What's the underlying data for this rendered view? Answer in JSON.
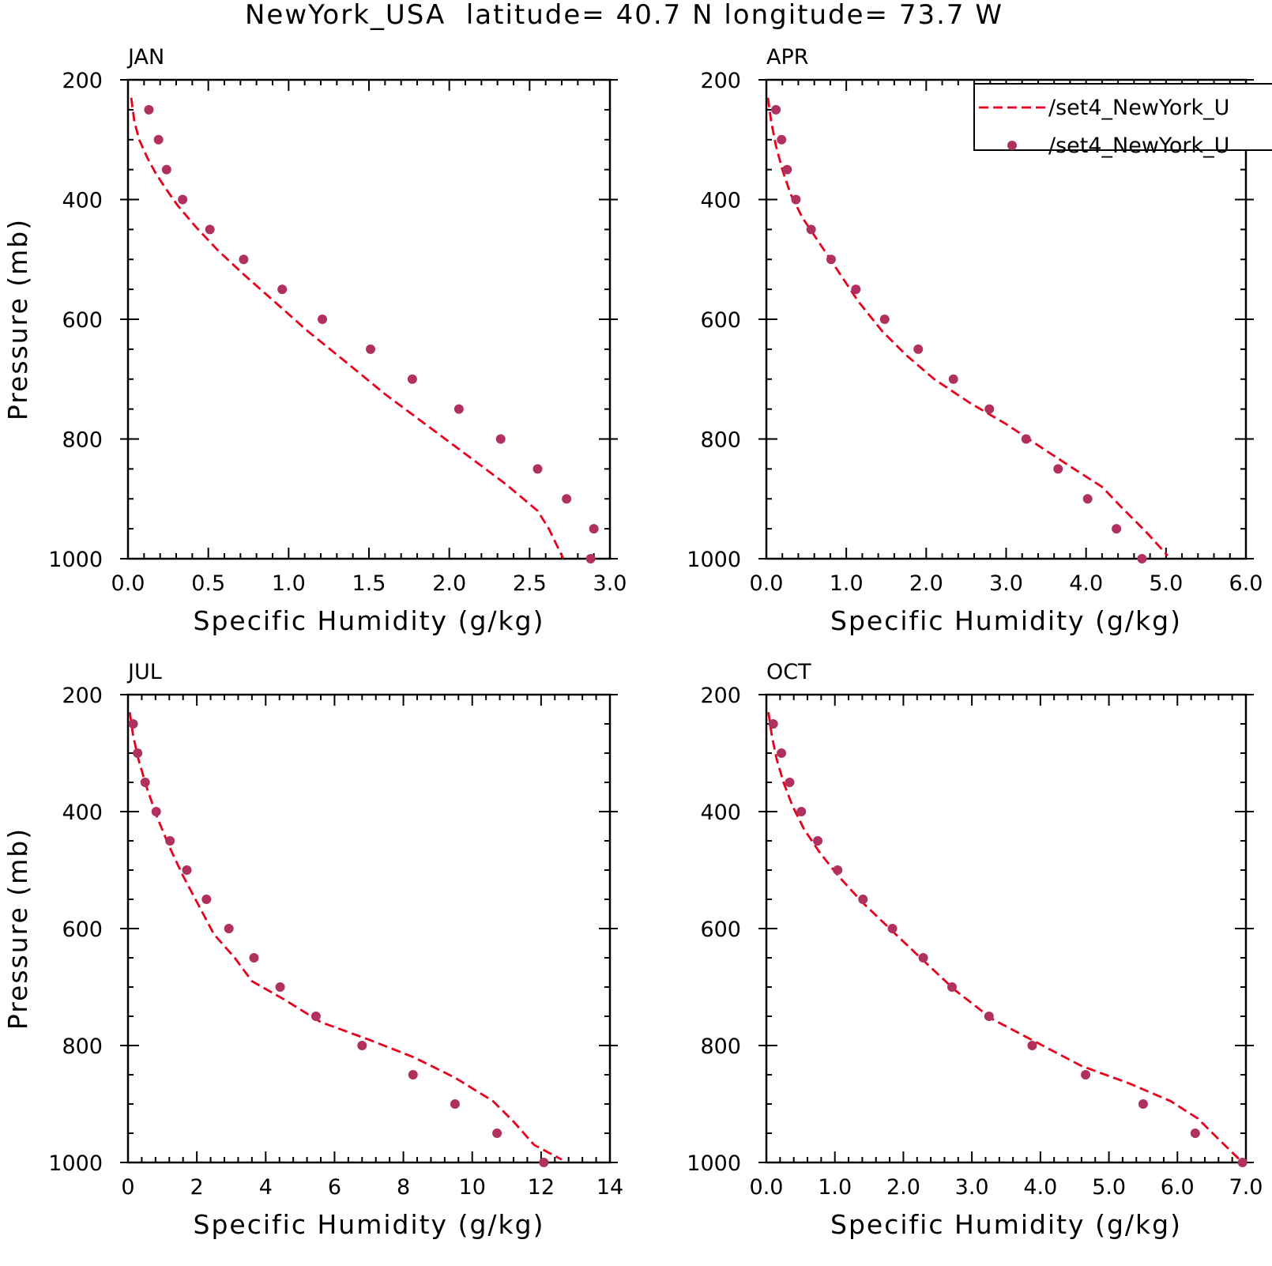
{
  "figure": {
    "title": "NewYork_USA  latitude= 40.7 N longitude= 73.7 W",
    "legend": {
      "placement": "top-right",
      "entries": [
        {
          "label": "/set4_NewYork_U",
          "style": "dashed-line",
          "color": "#e8001c"
        },
        {
          "label": "/set4_NewYork_U",
          "style": "dot",
          "color": "#b03060"
        }
      ]
    }
  },
  "chart_data": [
    {
      "type": "line",
      "panel_label": "JAN",
      "xlabel": "Specific Humidity (g/kg)",
      "ylabel": "Pressure (mb)",
      "xlim": [
        0,
        3
      ],
      "ylim": [
        200,
        1000
      ],
      "y_inverted": true,
      "xticks": [
        "0.0",
        "0.5",
        "1.0",
        "1.5",
        "2.0",
        "2.5",
        "3.0"
      ],
      "xtick_values": [
        0,
        0.5,
        1,
        1.5,
        2,
        2.5,
        3
      ],
      "yticks": [
        "200",
        "400",
        "600",
        "800",
        "1000"
      ],
      "ytick_values": [
        200,
        400,
        600,
        800,
        1000
      ],
      "series": [
        {
          "style": "dashed-line",
          "color": "#e8001c",
          "x": [
            0.02,
            0.04,
            0.07,
            0.12,
            0.17,
            0.23,
            0.31,
            0.42,
            0.56,
            0.72,
            0.91,
            1.12,
            1.35,
            1.6,
            1.85,
            2.1,
            2.35,
            2.55,
            2.62,
            2.71
          ],
          "y": [
            230,
            270,
            300,
            330,
            355,
            380,
            410,
            445,
            485,
            525,
            570,
            620,
            670,
            725,
            775,
            825,
            875,
            920,
            950,
            1000
          ]
        },
        {
          "style": "dot",
          "color": "#b03060",
          "x": [
            0.13,
            0.19,
            0.24,
            0.34,
            0.51,
            0.72,
            0.96,
            1.21,
            1.51,
            1.77,
            2.06,
            2.32,
            2.55,
            2.73,
            2.9,
            2.88
          ],
          "y": [
            250,
            300,
            350,
            400,
            450,
            500,
            550,
            600,
            650,
            700,
            750,
            800,
            850,
            900,
            950,
            1000
          ]
        }
      ]
    },
    {
      "type": "line",
      "panel_label": "APR",
      "xlabel": "Specific Humidity (g/kg)",
      "ylabel": "",
      "xlim": [
        0,
        6
      ],
      "ylim": [
        200,
        1000
      ],
      "y_inverted": true,
      "xticks": [
        "0.0",
        "1.0",
        "2.0",
        "3.0",
        "4.0",
        "5.0",
        "6.0"
      ],
      "xtick_values": [
        0,
        1,
        2,
        3,
        4,
        5,
        6
      ],
      "yticks": [
        "200",
        "400",
        "600",
        "800",
        "1000"
      ],
      "ytick_values": [
        200,
        400,
        600,
        800,
        1000
      ],
      "series": [
        {
          "style": "dashed-line",
          "color": "#e8001c",
          "x": [
            0.02,
            0.06,
            0.12,
            0.2,
            0.3,
            0.45,
            0.65,
            0.9,
            1.15,
            1.45,
            1.75,
            2.1,
            2.55,
            3.0,
            3.45,
            3.85,
            4.2,
            4.45,
            4.75,
            5.02
          ],
          "y": [
            230,
            270,
            310,
            350,
            390,
            430,
            470,
            520,
            570,
            620,
            660,
            700,
            740,
            775,
            815,
            850,
            880,
            915,
            955,
            995
          ]
        },
        {
          "style": "dot",
          "color": "#b03060",
          "x": [
            0.12,
            0.19,
            0.26,
            0.37,
            0.56,
            0.81,
            1.12,
            1.48,
            1.9,
            2.34,
            2.79,
            3.25,
            3.65,
            4.02,
            4.38,
            4.7
          ],
          "y": [
            250,
            300,
            350,
            400,
            450,
            500,
            550,
            600,
            650,
            700,
            750,
            800,
            850,
            900,
            950,
            1000
          ]
        }
      ]
    },
    {
      "type": "line",
      "panel_label": "JUL",
      "xlabel": "Specific Humidity (g/kg)",
      "ylabel": "Pressure (mb)",
      "xlim": [
        0,
        14
      ],
      "ylim": [
        200,
        1000
      ],
      "y_inverted": true,
      "xticks": [
        "0",
        "2",
        "4",
        "6",
        "8",
        "10",
        "12",
        "14"
      ],
      "xtick_values": [
        0,
        2,
        4,
        6,
        8,
        10,
        12,
        14
      ],
      "yticks": [
        "200",
        "400",
        "600",
        "800",
        "1000"
      ],
      "ytick_values": [
        200,
        400,
        600,
        800,
        1000
      ],
      "series": [
        {
          "style": "dashed-line",
          "color": "#e8001c",
          "x": [
            0.05,
            0.15,
            0.3,
            0.55,
            0.85,
            1.2,
            1.6,
            2.05,
            2.5,
            3.1,
            3.6,
            4.5,
            5.6,
            7.0,
            8.3,
            9.5,
            10.6,
            11.2,
            11.8,
            12.6
          ],
          "y": [
            230,
            270,
            310,
            360,
            410,
            460,
            510,
            560,
            610,
            650,
            690,
            720,
            760,
            790,
            820,
            855,
            895,
            930,
            970,
            995
          ]
        },
        {
          "style": "dot",
          "color": "#b03060",
          "x": [
            0.15,
            0.28,
            0.5,
            0.82,
            1.22,
            1.71,
            2.28,
            2.93,
            3.66,
            4.42,
            5.46,
            6.8,
            8.28,
            9.5,
            10.72,
            12.08
          ],
          "y": [
            250,
            300,
            350,
            400,
            450,
            500,
            550,
            600,
            650,
            700,
            750,
            800,
            850,
            900,
            950,
            1000
          ]
        }
      ]
    },
    {
      "type": "line",
      "panel_label": "OCT",
      "xlabel": "Specific Humidity (g/kg)",
      "ylabel": "",
      "xlim": [
        0,
        7
      ],
      "ylim": [
        200,
        1000
      ],
      "y_inverted": true,
      "xticks": [
        "0.0",
        "1.0",
        "2.0",
        "3.0",
        "4.0",
        "5.0",
        "6.0",
        "7.0"
      ],
      "xtick_values": [
        0,
        1,
        2,
        3,
        4,
        5,
        6,
        7
      ],
      "yticks": [
        "200",
        "400",
        "600",
        "800",
        "1000"
      ],
      "ytick_values": [
        200,
        400,
        600,
        800,
        1000
      ],
      "series": [
        {
          "style": "dashed-line",
          "color": "#e8001c",
          "x": [
            0.03,
            0.08,
            0.15,
            0.25,
            0.38,
            0.55,
            0.78,
            1.05,
            1.4,
            1.8,
            2.25,
            2.75,
            3.3,
            3.95,
            4.6,
            5.3,
            5.9,
            6.3,
            6.6,
            6.95
          ],
          "y": [
            230,
            270,
            310,
            350,
            390,
            430,
            470,
            510,
            555,
            600,
            650,
            705,
            755,
            795,
            835,
            865,
            895,
            925,
            960,
            1000
          ]
        },
        {
          "style": "dot",
          "color": "#b03060",
          "x": [
            0.1,
            0.22,
            0.34,
            0.51,
            0.75,
            1.04,
            1.41,
            1.84,
            2.29,
            2.71,
            3.25,
            3.88,
            4.66,
            5.5,
            6.26,
            6.95
          ],
          "y": [
            250,
            300,
            350,
            400,
            450,
            500,
            550,
            600,
            650,
            700,
            750,
            800,
            850,
            900,
            950,
            1000
          ]
        }
      ]
    }
  ]
}
